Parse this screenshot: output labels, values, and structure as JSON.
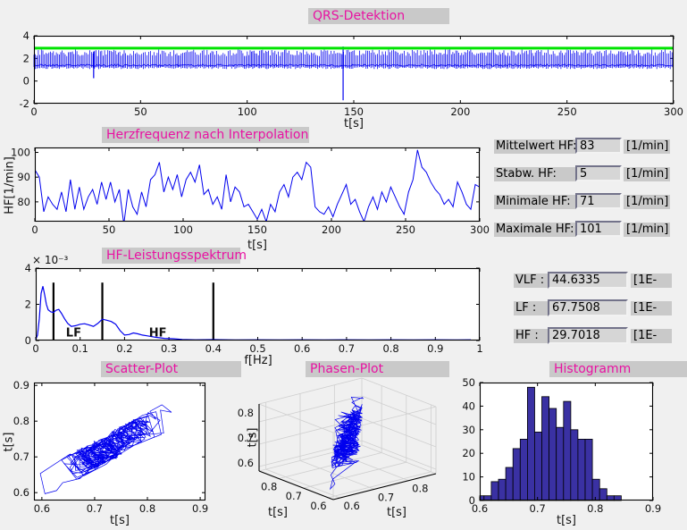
{
  "titles": {
    "qrs": "QRS-Detektion",
    "hr": "Herzfrequenz nach Interpolation",
    "spectrum": "HF-Leistungsspektrum",
    "scatter": "Scatter-Plot",
    "phase": "Phasen-Plot",
    "histogram": "Histogramm"
  },
  "axis_labels": {
    "qrs_x": "t[s]",
    "hr_x": "t[s]",
    "hr_y": "HF[1/min]",
    "spec_x": "f[Hz]",
    "spec_exp": "× 10⁻³",
    "scatter_x": "t[s]",
    "scatter_y": "t[s]",
    "phase_x_left": "t[s]",
    "phase_x_right": "t[s]",
    "phase_z": "t[s]",
    "hist_x": "t[s]"
  },
  "stats_fields": [
    {
      "label": "Mittelwert HF:",
      "value": "83",
      "unit": "[1/min]"
    },
    {
      "label": "Stabw. HF:",
      "value": "5",
      "unit": "[1/min]"
    },
    {
      "label": "Minimale HF:",
      "value": "71",
      "unit": "[1/min]"
    },
    {
      "label": "Maximale HF:",
      "value": "101",
      "unit": "[1/min]"
    }
  ],
  "spectrum_fields": [
    {
      "label": "VLF :",
      "value": "44.6335",
      "unit": "[1E-"
    },
    {
      "label": "LF :",
      "value": "67.7508",
      "unit": "[1E-"
    },
    {
      "label": "HF :",
      "value": "29.7018",
      "unit": "[1E-"
    }
  ],
  "colors": {
    "figure_bg": "#f0f0f0",
    "plot_bg": "#ffffff",
    "title_text": "#e812a2",
    "title_bg": "#c9c9c9",
    "signal_blue": "#0000ee",
    "threshold_green": "#00e400",
    "band_label_red": "#f03030",
    "histogram_fill": "#3a31a3",
    "axis_black": "#000000"
  },
  "chart_data": [
    {
      "id": "qrs",
      "type": "line",
      "title": "QRS-Detektion",
      "xlabel": "t[s]",
      "xlim": [
        0,
        300
      ],
      "ylim": [
        -2,
        4
      ],
      "xticks": [
        0,
        50,
        100,
        150,
        200,
        250,
        300
      ],
      "yticks": [
        -2,
        0,
        2,
        4
      ],
      "threshold_line": {
        "y": 2.9,
        "color": "#00e400"
      },
      "signal_model": {
        "baseline": 1.4,
        "beat_interval_s": 0.72,
        "spike_top_range": [
          2.2,
          2.8
        ],
        "spike_bottom": 1.1,
        "artifacts": [
          {
            "t": 28,
            "min": 0.25,
            "max": 2.6
          },
          {
            "t": 145,
            "min": -1.7,
            "max": 3.05
          }
        ]
      }
    },
    {
      "id": "heart_rate",
      "type": "line",
      "title": "Herzfrequenz nach Interpolation",
      "xlabel": "t[s]",
      "ylabel": "HF[1/min]",
      "xlim": [
        0,
        300
      ],
      "ylim": [
        72,
        102
      ],
      "xticks": [
        0,
        50,
        100,
        150,
        200,
        250,
        300
      ],
      "yticks": [
        80,
        90,
        100
      ],
      "x_step": 3,
      "values": [
        93,
        90,
        76,
        82,
        79,
        77,
        84,
        76,
        89,
        77,
        86,
        77,
        82,
        85,
        79,
        88,
        81,
        88,
        80,
        85,
        71,
        85,
        78,
        75,
        84,
        78,
        89,
        91,
        96,
        84,
        90,
        85,
        91,
        82,
        89,
        92,
        88,
        95,
        83,
        85,
        79,
        82,
        77,
        91,
        80,
        86,
        84,
        78,
        79,
        76,
        73,
        77,
        72,
        79,
        76,
        84,
        87,
        82,
        90,
        92,
        89,
        96,
        94,
        78,
        76,
        75,
        78,
        74,
        79,
        83,
        87,
        79,
        81,
        76,
        72,
        78,
        82,
        77,
        84,
        80,
        86,
        82,
        78,
        75,
        84,
        89,
        101,
        94,
        92,
        88,
        85,
        83,
        79,
        81,
        78,
        88,
        84,
        79,
        77,
        87,
        86
      ]
    },
    {
      "id": "spectrum",
      "type": "line",
      "title": "HF-Leistungsspektrum",
      "xlabel": "f[Hz]",
      "y_exponent_label": "× 10⁻³",
      "xlim": [
        0,
        1
      ],
      "ylim": [
        0,
        4
      ],
      "xticks": [
        0,
        0.1,
        0.2,
        0.3,
        0.4,
        0.5,
        0.6,
        0.7,
        0.8,
        0.9,
        1
      ],
      "yticks": [
        0,
        2,
        4
      ],
      "points": [
        [
          0,
          0.05
        ],
        [
          0.004,
          0.3
        ],
        [
          0.008,
          1.2
        ],
        [
          0.012,
          2.6
        ],
        [
          0.016,
          3.0
        ],
        [
          0.02,
          2.55
        ],
        [
          0.024,
          2.0
        ],
        [
          0.028,
          1.7
        ],
        [
          0.034,
          1.58
        ],
        [
          0.04,
          1.55
        ],
        [
          0.046,
          1.68
        ],
        [
          0.052,
          1.72
        ],
        [
          0.058,
          1.5
        ],
        [
          0.065,
          1.2
        ],
        [
          0.072,
          0.95
        ],
        [
          0.08,
          0.78
        ],
        [
          0.09,
          0.82
        ],
        [
          0.1,
          0.9
        ],
        [
          0.11,
          0.93
        ],
        [
          0.12,
          0.86
        ],
        [
          0.13,
          0.78
        ],
        [
          0.14,
          0.95
        ],
        [
          0.15,
          1.18
        ],
        [
          0.16,
          1.12
        ],
        [
          0.17,
          1.05
        ],
        [
          0.18,
          0.9
        ],
        [
          0.19,
          0.55
        ],
        [
          0.2,
          0.3
        ],
        [
          0.21,
          0.33
        ],
        [
          0.22,
          0.42
        ],
        [
          0.23,
          0.37
        ],
        [
          0.24,
          0.3
        ],
        [
          0.25,
          0.26
        ],
        [
          0.27,
          0.18
        ],
        [
          0.29,
          0.12
        ],
        [
          0.31,
          0.1
        ],
        [
          0.33,
          0.06
        ],
        [
          0.36,
          0.04
        ],
        [
          0.4,
          0.05
        ],
        [
          0.45,
          0.03
        ],
        [
          0.5,
          0.04
        ],
        [
          0.55,
          0.03
        ],
        [
          0.6,
          0.04
        ],
        [
          0.65,
          0.03
        ],
        [
          0.7,
          0.04
        ],
        [
          0.75,
          0.03
        ],
        [
          0.8,
          0.04
        ],
        [
          0.85,
          0.03
        ],
        [
          0.9,
          0.04
        ],
        [
          0.95,
          0.03
        ],
        [
          0.98,
          0.04
        ]
      ],
      "vlines": {
        "f": [
          0.04,
          0.15,
          0.4
        ],
        "top": 3.2
      },
      "band_labels": [
        {
          "text": "LF",
          "f": 0.068,
          "y": 0.22
        },
        {
          "text": "HF",
          "f": 0.255,
          "y": 0.22
        }
      ]
    },
    {
      "id": "scatter",
      "type": "line",
      "title": "Scatter-Plot",
      "xlabel": "t[s]",
      "ylabel": "t[s]",
      "xlim": [
        0.585,
        0.91
      ],
      "ylim": [
        0.578,
        0.908
      ],
      "xticks": [
        0.6,
        0.7,
        0.8,
        0.9
      ],
      "yticks": [
        0.6,
        0.7,
        0.8,
        0.9
      ],
      "series_model": {
        "n": 350,
        "mean": 0.72,
        "sd": 0.042,
        "range": [
          0.597,
          0.848
        ],
        "note": "Poincare plot tau_i vs tau_i+1"
      }
    },
    {
      "id": "phase",
      "type": "line3d",
      "title": "Phasen-Plot",
      "xlabel": "t[s]",
      "ylabel": "t[s]",
      "zlabel": "t[s]",
      "xticks": [
        0.8,
        0.7,
        0.6
      ],
      "yticks": [
        0.6,
        0.7,
        0.8
      ],
      "zticks": [
        0.8,
        0.7,
        0.6
      ],
      "lims": [
        0.58,
        0.88
      ],
      "series_model": {
        "n": 348,
        "note": "tau_i, tau_i+1, tau_i+2 trajectory"
      }
    },
    {
      "id": "histogram",
      "type": "bar",
      "title": "Histogramm",
      "xlabel": "t[s]",
      "xlim": [
        0.6,
        0.9
      ],
      "ylim": [
        0,
        50
      ],
      "xticks": [
        0.6,
        0.7,
        0.8,
        0.9
      ],
      "yticks": [
        0,
        10,
        20,
        30,
        40,
        50
      ],
      "bin_start": 0.595,
      "bin_width": 0.0125,
      "counts": [
        2,
        2,
        8,
        9,
        14,
        22,
        26,
        48,
        29,
        44,
        39,
        31,
        42,
        30,
        26,
        26,
        9,
        5,
        2,
        2
      ],
      "bar_color": "#3a31a3"
    }
  ]
}
